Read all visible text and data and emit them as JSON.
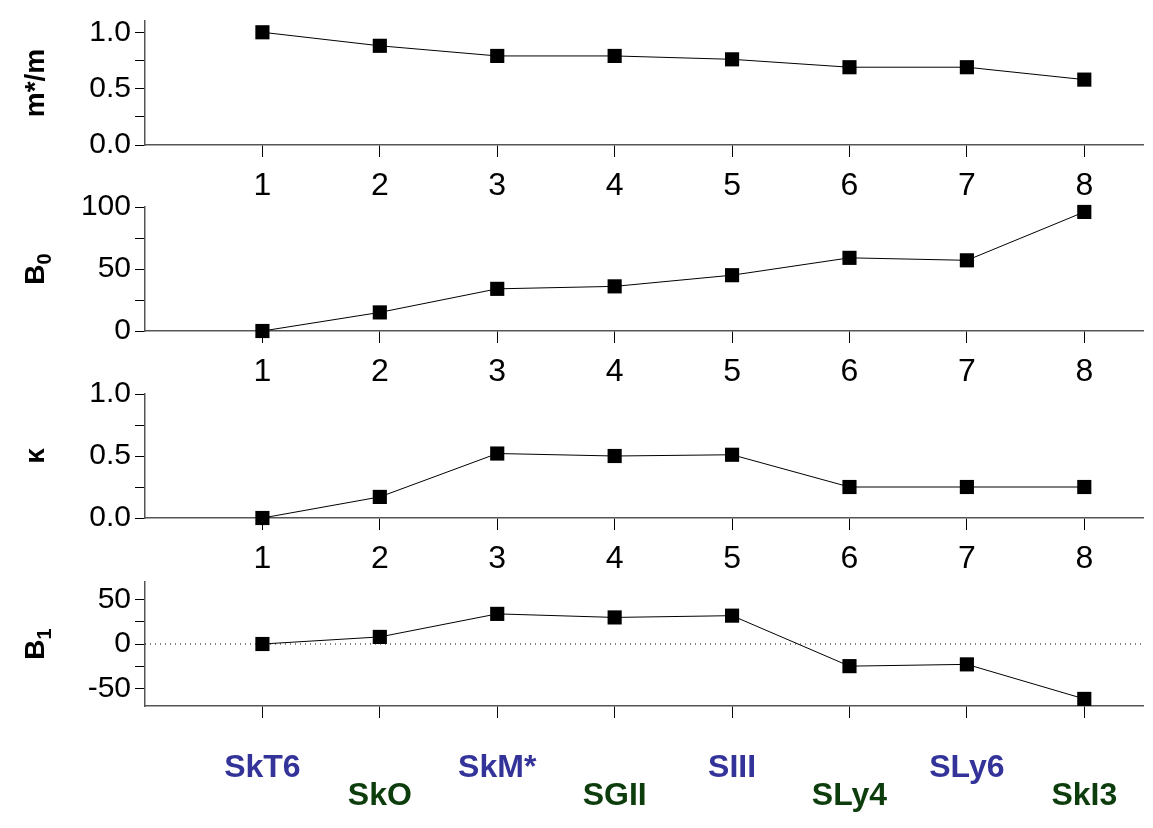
{
  "chart_data": [
    {
      "type": "line",
      "ylabel": "m*/m",
      "x": [
        1,
        2,
        3,
        4,
        5,
        6,
        7,
        8
      ],
      "series": [
        {
          "color": "#000000",
          "values": [
            1.0,
            0.88,
            0.79,
            0.79,
            0.76,
            0.69,
            0.69,
            0.58
          ]
        }
      ],
      "xlim": [
        0,
        8.5
      ],
      "xticks": [
        1,
        2,
        3,
        4,
        5,
        6,
        7,
        8
      ],
      "ylim": [
        0,
        1.1
      ],
      "yticks": [
        {
          "value": 0,
          "label": "0.0"
        },
        {
          "value": 0.25,
          "label": null
        },
        {
          "value": 0.5,
          "label": "0.5"
        },
        {
          "value": 0.75,
          "label": null
        },
        {
          "value": 1,
          "label": "1.0"
        }
      ],
      "marker": "square",
      "line_style": "solid",
      "grid": false,
      "legend": false
    },
    {
      "type": "line",
      "ylabel": "B$_{0}$",
      "x": [
        1,
        2,
        3,
        4,
        5,
        6,
        7,
        8
      ],
      "series": [
        {
          "color": "#000000",
          "values": [
            0,
            15,
            34,
            36,
            45,
            59,
            57,
            96
          ]
        }
      ],
      "xlim": [
        0,
        8.5
      ],
      "xticks": [
        1,
        2,
        3,
        4,
        5,
        6,
        7,
        8
      ],
      "ylim": [
        0,
        100
      ],
      "yticks": [
        0,
        {
          "value": 25,
          "label": null
        },
        50,
        {
          "value": 75,
          "label": null
        },
        100
      ],
      "marker": "square",
      "line_style": "solid",
      "grid": false,
      "legend": false
    },
    {
      "type": "line",
      "ylabel": "κ",
      "x": [
        1,
        2,
        3,
        4,
        5,
        6,
        7,
        8
      ],
      "series": [
        {
          "color": "#000000",
          "values": [
            0,
            0.17,
            0.52,
            0.5,
            0.51,
            0.25,
            0.25,
            0.25
          ]
        }
      ],
      "xlim": [
        0,
        8.5
      ],
      "xticks": [
        1,
        2,
        3,
        4,
        5,
        6,
        7,
        8
      ],
      "ylim": [
        0,
        1.0
      ],
      "yticks": [
        {
          "value": 0,
          "label": "0.0"
        },
        {
          "value": 0.25,
          "label": null
        },
        {
          "value": 0.5,
          "label": "0.5"
        },
        {
          "value": 0.75,
          "label": null
        },
        {
          "value": 1,
          "label": "1.0"
        }
      ],
      "marker": "square",
      "line_style": "solid",
      "grid": false,
      "legend": false
    },
    {
      "type": "line",
      "ylabel": "B$_{1}$",
      "x": [
        1,
        2,
        3,
        4,
        5,
        6,
        7,
        8
      ],
      "series": [
        {
          "color": "#000000",
          "values": [
            0,
            8,
            34,
            30,
            32,
            -25,
            -23,
            -62
          ]
        }
      ],
      "xlim": [
        0,
        8.5
      ],
      "xticks": [
        1,
        2,
        3,
        4,
        5,
        6,
        7,
        8
      ],
      "ylim": [
        -70,
        70
      ],
      "yticks": [
        -50,
        {
          "value": -25,
          "label": null
        },
        0,
        {
          "value": 25,
          "label": null
        },
        50
      ],
      "tick_labels": "y",
      "ref_lines": [
        {
          "axis": "y",
          "value": 0,
          "line_style": "dotted"
        }
      ],
      "annotations": [
        "SkT6",
        "SkO",
        "SkM*",
        "SGII",
        "SIII",
        "SLy4",
        "SLy6",
        "SkI3"
      ],
      "marker": "square",
      "line_style": "solid",
      "grid": false,
      "legend": false
    }
  ]
}
